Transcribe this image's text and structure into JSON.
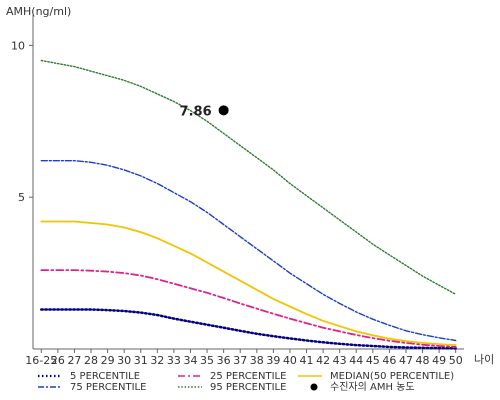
{
  "chart_data": {
    "type": "line",
    "ylabel": "AMH(ng/ml)",
    "xlabel": "나이",
    "ylim": [
      0,
      11
    ],
    "yticks": [
      5,
      10
    ],
    "categories": [
      "16-25",
      "26",
      "27",
      "28",
      "29",
      "30",
      "31",
      "32",
      "33",
      "34",
      "35",
      "36",
      "37",
      "38",
      "39",
      "40",
      "41",
      "42",
      "43",
      "44",
      "45",
      "46",
      "47",
      "48",
      "49",
      "50"
    ],
    "series": [
      {
        "name": "5 PERCENTILE",
        "color": "#000080",
        "dash": "1.5,2.5",
        "width": 2.5,
        "values": [
          1.3,
          1.3,
          1.3,
          1.3,
          1.28,
          1.25,
          1.2,
          1.12,
          1.0,
          0.9,
          0.8,
          0.7,
          0.6,
          0.5,
          0.42,
          0.35,
          0.28,
          0.22,
          0.17,
          0.13,
          0.1,
          0.07,
          0.05,
          0.04,
          0.03,
          0.02
        ]
      },
      {
        "name": "25 PERCENTILE",
        "color": "#e0208a",
        "dash": "7,3,2,3",
        "width": 1.8,
        "values": [
          2.6,
          2.6,
          2.6,
          2.58,
          2.55,
          2.5,
          2.42,
          2.3,
          2.15,
          2.0,
          1.85,
          1.68,
          1.5,
          1.33,
          1.16,
          1.0,
          0.85,
          0.7,
          0.58,
          0.46,
          0.36,
          0.27,
          0.2,
          0.14,
          0.1,
          0.07
        ]
      },
      {
        "name": "MEDIAN(50 PERCENTILE)",
        "color": "#f2c400",
        "dash": "",
        "width": 1.8,
        "values": [
          4.2,
          4.2,
          4.2,
          4.15,
          4.1,
          4.0,
          3.85,
          3.65,
          3.4,
          3.15,
          2.85,
          2.55,
          2.25,
          1.95,
          1.65,
          1.4,
          1.15,
          0.93,
          0.75,
          0.58,
          0.45,
          0.34,
          0.26,
          0.2,
          0.16,
          0.13
        ]
      },
      {
        "name": "75 PERCENTILE",
        "color": "#1a3fc0",
        "dash": "6,2,2,2",
        "width": 1.4,
        "values": [
          6.2,
          6.2,
          6.2,
          6.15,
          6.05,
          5.9,
          5.7,
          5.45,
          5.15,
          4.85,
          4.5,
          4.1,
          3.7,
          3.3,
          2.9,
          2.5,
          2.15,
          1.8,
          1.5,
          1.22,
          0.98,
          0.78,
          0.6,
          0.47,
          0.37,
          0.28
        ]
      },
      {
        "name": "95 PERCENTILE",
        "color": "#2e7d32",
        "dash": "1.5,1.8",
        "width": 1.4,
        "values": [
          9.5,
          9.4,
          9.3,
          9.15,
          9.0,
          8.85,
          8.65,
          8.4,
          8.15,
          7.85,
          7.5,
          7.1,
          6.7,
          6.3,
          5.9,
          5.45,
          5.05,
          4.65,
          4.25,
          3.85,
          3.45,
          3.1,
          2.75,
          2.4,
          2.1,
          1.8
        ]
      }
    ],
    "marker": {
      "name": "수진자의 AMH 농도",
      "x": "36",
      "y": 7.86,
      "label": "7.86",
      "color": "#000000"
    },
    "legend": {
      "position": "bottom",
      "items": [
        {
          "label": "5 PERCENTILE",
          "series": 0
        },
        {
          "label": "25 PERCENTILE",
          "series": 1
        },
        {
          "label": "MEDIAN(50 PERCENTILE)",
          "series": 2
        },
        {
          "label": "75 PERCENTILE",
          "series": 3
        },
        {
          "label": "95 PERCENTILE",
          "series": 4
        },
        {
          "label": "수진자의 AMH 농도",
          "marker": true
        }
      ]
    }
  }
}
